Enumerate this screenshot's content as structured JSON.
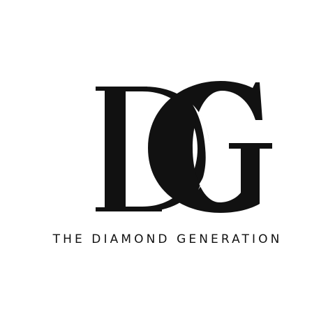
{
  "logo": {
    "monogram_letters": "DG",
    "tagline": "THE DIAMOND GENERATION",
    "ink_color": "#111111",
    "background_color": "#ffffff"
  }
}
